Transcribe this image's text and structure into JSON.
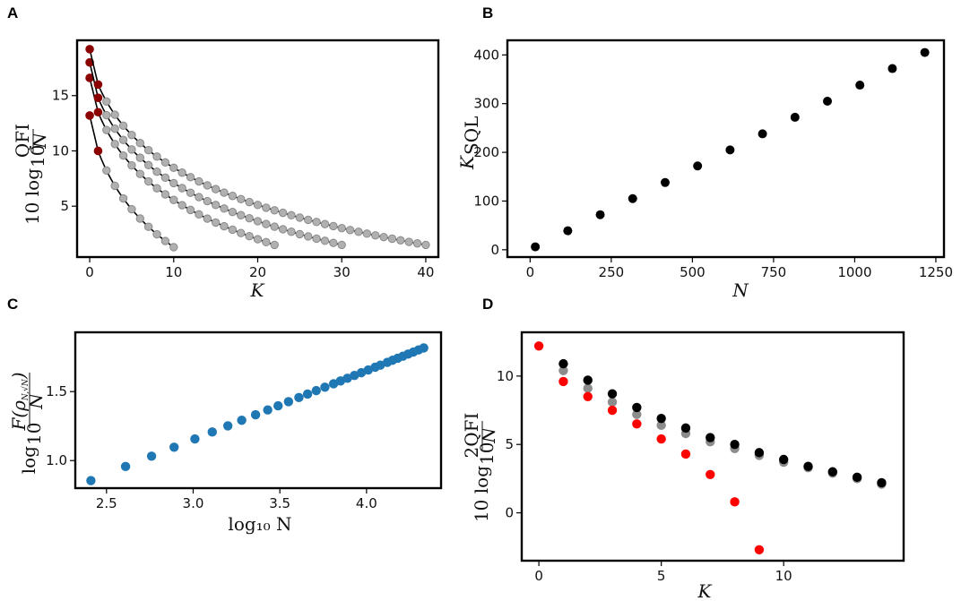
{
  "chart_data": [
    {
      "panel": "A",
      "type": "scatter",
      "xlabel": "K",
      "ylabel": "10 log10 (QFI/N)",
      "xlim": [
        -1.5,
        41.5
      ],
      "ylim": [
        0.4,
        20
      ],
      "xticks": [
        "0",
        "10",
        "20",
        "30",
        "40"
      ],
      "yticks": [
        "5",
        "10",
        "15"
      ],
      "series": [
        {
          "name": "curve-1",
          "kmax": 10,
          "y0": 13.2,
          "y1": 10.0,
          "yend": 1.3
        },
        {
          "name": "curve-2",
          "kmax": 22,
          "y0": 16.6,
          "y1": 13.5,
          "yend": 1.5
        },
        {
          "name": "curve-3",
          "kmax": 30,
          "y0": 18.0,
          "y1": 14.8,
          "yend": 1.5
        },
        {
          "name": "curve-4",
          "kmax": 40,
          "y0": 19.2,
          "y1": 16.0,
          "yend": 1.5
        }
      ]
    },
    {
      "panel": "B",
      "type": "scatter",
      "xlabel": "N",
      "ylabel": "K_SQL",
      "xlim": [
        -70,
        1275
      ],
      "ylim": [
        -15,
        430
      ],
      "xticks": [
        "0",
        "250",
        "500",
        "750",
        "1000",
        "1250"
      ],
      "yticks": [
        "0",
        "100",
        "200",
        "300",
        "400"
      ],
      "x": [
        16,
        116,
        216,
        316,
        416,
        516,
        616,
        716,
        816,
        916,
        1016,
        1116,
        1216
      ],
      "y": [
        6,
        39,
        72,
        105,
        138,
        172,
        205,
        238,
        272,
        305,
        338,
        372,
        405
      ]
    },
    {
      "panel": "C",
      "type": "scatter",
      "xlabel": "log10 N",
      "ylabel": "log10 F(ρ_{N,√N})/N",
      "xlim": [
        2.32,
        4.43
      ],
      "ylim": [
        0.8,
        1.93
      ],
      "xticks": [
        "2.5",
        "3.0",
        "3.5",
        "4.0"
      ],
      "yticks": [
        "1.0",
        "1.5"
      ],
      "x": [
        2.41,
        2.61,
        2.76,
        2.89,
        3.01,
        3.11,
        3.2,
        3.28,
        3.36,
        3.43,
        3.49,
        3.55,
        3.61,
        3.66,
        3.71,
        3.76,
        3.81,
        3.85,
        3.89,
        3.93,
        3.97,
        4.01,
        4.05,
        4.08,
        4.12,
        4.15,
        4.18,
        4.21,
        4.24,
        4.27,
        4.3,
        4.33
      ],
      "y": [
        0.855,
        0.957,
        1.032,
        1.097,
        1.157,
        1.207,
        1.252,
        1.292,
        1.332,
        1.367,
        1.397,
        1.427,
        1.457,
        1.482,
        1.507,
        1.532,
        1.557,
        1.577,
        1.597,
        1.617,
        1.637,
        1.657,
        1.677,
        1.692,
        1.712,
        1.727,
        1.742,
        1.757,
        1.772,
        1.787,
        1.802,
        1.817
      ]
    },
    {
      "panel": "D",
      "type": "scatter",
      "xlabel": "K",
      "ylabel": "10 log10 (2QFI/N)",
      "xlim": [
        -0.7,
        14.9
      ],
      "ylim": [
        -3.5,
        13.2
      ],
      "xticks": [
        "0",
        "5",
        "10"
      ],
      "yticks": [
        "0",
        "5",
        "10"
      ],
      "series": [
        {
          "name": "black",
          "color": "#000000",
          "x": [
            1,
            2,
            3,
            4,
            5,
            6,
            7,
            8,
            9,
            10,
            11,
            12,
            13,
            14
          ],
          "y": [
            10.9,
            9.7,
            8.7,
            7.7,
            6.9,
            6.2,
            5.5,
            5.0,
            4.4,
            3.9,
            3.4,
            3.0,
            2.6,
            2.2
          ]
        },
        {
          "name": "gray",
          "color": "#8c8c8c",
          "x": [
            1,
            2,
            3,
            4,
            5,
            6,
            7,
            8,
            9,
            10,
            11,
            12,
            13,
            14
          ],
          "y": [
            10.4,
            9.1,
            8.1,
            7.2,
            6.4,
            5.8,
            5.2,
            4.7,
            4.2,
            3.7,
            3.3,
            2.9,
            2.5,
            2.1
          ]
        },
        {
          "name": "red",
          "color": "#ff0000",
          "x": [
            0,
            1,
            2,
            3,
            4,
            5,
            6,
            7,
            8,
            9
          ],
          "y": [
            12.2,
            9.6,
            8.5,
            7.5,
            6.5,
            5.4,
            4.3,
            2.8,
            0.8,
            -2.7
          ]
        }
      ]
    }
  ],
  "panels": {
    "A": {
      "letter": "A",
      "xlabel": "K"
    },
    "B": {
      "letter": "B",
      "xlabel": "N"
    },
    "C": {
      "letter": "C",
      "xlabel": "log₁₀ N"
    },
    "D": {
      "letter": "D",
      "xlabel": "K"
    }
  }
}
